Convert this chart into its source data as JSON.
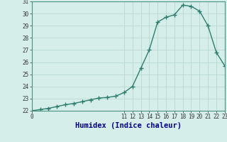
{
  "x": [
    0,
    1,
    2,
    3,
    4,
    5,
    6,
    7,
    8,
    9,
    10,
    11,
    12,
    13,
    14,
    15,
    16,
    17,
    18,
    19,
    20,
    21,
    22,
    23
  ],
  "y": [
    22.0,
    22.1,
    22.2,
    22.35,
    22.5,
    22.6,
    22.75,
    22.9,
    23.05,
    23.1,
    23.2,
    23.5,
    24.0,
    25.5,
    27.0,
    29.3,
    29.7,
    29.9,
    30.7,
    30.6,
    30.2,
    29.0,
    26.8,
    25.7
  ],
  "line_color": "#2e7d6e",
  "marker": "+",
  "marker_size": 4,
  "marker_lw": 1.0,
  "bg_color": "#d6eeea",
  "grid_color": "#b8d8d2",
  "xlabel": "Humidex (Indice chaleur)",
  "xlabel_fontsize": 7.5,
  "xlabel_color": "#00008b",
  "ylim": [
    22,
    31
  ],
  "xlim": [
    0,
    23
  ],
  "yticks": [
    22,
    23,
    24,
    25,
    26,
    27,
    28,
    29,
    30,
    31
  ],
  "xticks": [
    0,
    11,
    12,
    13,
    14,
    15,
    16,
    17,
    18,
    19,
    20,
    21,
    22,
    23
  ],
  "tick_fontsize": 5.5,
  "linewidth": 1.0
}
